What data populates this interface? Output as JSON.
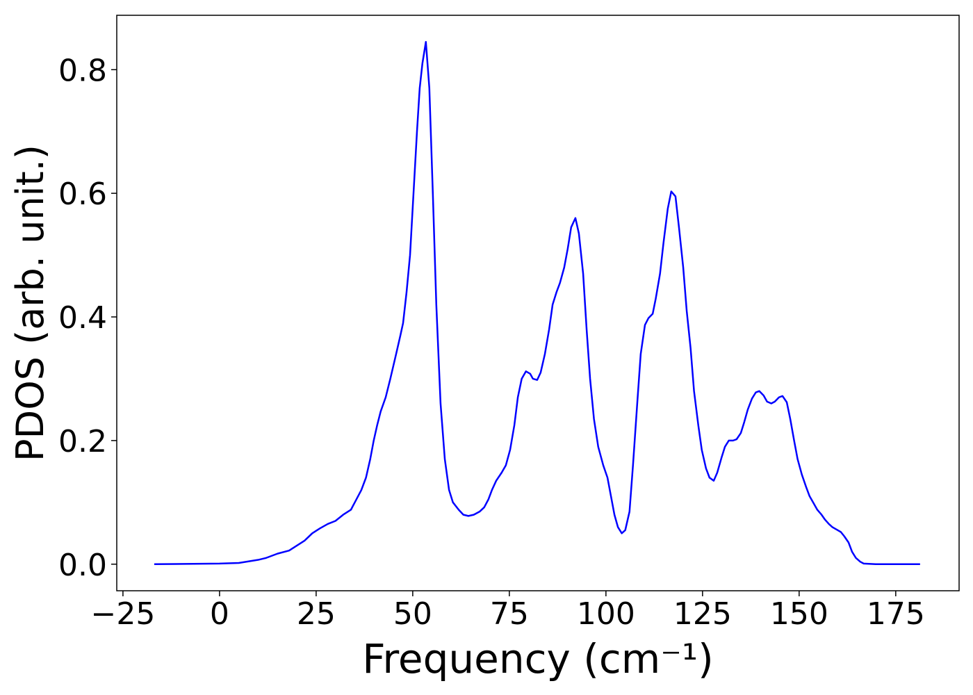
{
  "chart_data": {
    "type": "line",
    "xlabel": "Frequency (cm⁻¹)",
    "ylabel": "PDOS (arb. unit.)",
    "color": "#0000ff",
    "xlim": [
      -26.6,
      191.4
    ],
    "ylim": [
      -0.043,
      0.888
    ],
    "xticks": [
      {
        "value": -25,
        "label": "−25"
      },
      0,
      25,
      50,
      75,
      100,
      125,
      150,
      175
    ],
    "yticks": [
      {
        "value": 0,
        "label": "0.0"
      },
      0.2,
      0.4,
      0.6,
      0.8
    ],
    "grid": false,
    "x": [
      -16.9,
      0,
      5,
      10,
      12,
      15,
      18,
      20,
      22,
      24,
      26,
      28,
      30,
      32,
      34,
      36.7,
      37.9,
      39.0,
      39.9,
      40.8,
      41.7,
      43.0,
      44.2,
      45.7,
      46.8,
      47.5,
      48.4,
      49.3,
      50.2,
      51.1,
      51.8,
      52.5,
      53.4,
      54.3,
      55.2,
      56.1,
      57.2,
      58.3,
      59.4,
      60.4,
      61.9,
      63.1,
      64.4,
      65.8,
      67.3,
      68.5,
      69.6,
      70.5,
      71.6,
      73.0,
      74.1,
      75.2,
      76.3,
      77.2,
      78.2,
      79.3,
      80.4,
      81.1,
      82.2,
      83.1,
      84.2,
      85.3,
      86.2,
      87.2,
      88.1,
      89.2,
      90.1,
      91.0,
      92.1,
      93.0,
      94.1,
      95.0,
      95.9,
      96.9,
      98.0,
      99.3,
      100.4,
      101.3,
      102.2,
      103.1,
      104.1,
      105.0,
      106.1,
      107.0,
      108.1,
      109.0,
      110.1,
      111.0,
      112.1,
      112.9,
      114.0,
      114.9,
      116.0,
      116.9,
      118.0,
      118.9,
      120.0,
      120.9,
      121.9,
      122.8,
      123.9,
      124.8,
      125.9,
      126.8,
      127.9,
      128.8,
      129.9,
      130.8,
      131.8,
      132.9,
      133.8,
      134.9,
      135.8,
      136.7,
      137.8,
      138.8,
      139.7,
      140.8,
      141.7,
      142.8,
      143.7,
      144.8,
      145.7,
      146.8,
      147.7,
      148.7,
      149.6,
      150.7,
      151.8,
      152.7,
      153.8,
      154.7,
      155.8,
      156.7,
      157.7,
      158.6,
      159.7,
      160.8,
      161.7,
      162.8,
      163.7,
      164.7,
      165.8,
      166.7,
      169.8,
      181.3
    ],
    "values": [
      0,
      0.001,
      0.002,
      0.007,
      0.01,
      0.017,
      0.022,
      0.03,
      0.038,
      0.05,
      0.058,
      0.065,
      0.07,
      0.08,
      0.088,
      0.12,
      0.14,
      0.17,
      0.2,
      0.225,
      0.247,
      0.27,
      0.3,
      0.34,
      0.37,
      0.39,
      0.44,
      0.5,
      0.6,
      0.7,
      0.77,
      0.81,
      0.845,
      0.77,
      0.6,
      0.42,
      0.26,
      0.17,
      0.12,
      0.1,
      0.088,
      0.08,
      0.078,
      0.08,
      0.085,
      0.092,
      0.105,
      0.12,
      0.135,
      0.148,
      0.16,
      0.185,
      0.225,
      0.27,
      0.3,
      0.312,
      0.308,
      0.3,
      0.298,
      0.31,
      0.34,
      0.38,
      0.42,
      0.44,
      0.455,
      0.48,
      0.51,
      0.545,
      0.56,
      0.535,
      0.47,
      0.38,
      0.3,
      0.235,
      0.19,
      0.16,
      0.14,
      0.11,
      0.08,
      0.06,
      0.05,
      0.055,
      0.085,
      0.16,
      0.26,
      0.34,
      0.387,
      0.398,
      0.405,
      0.43,
      0.47,
      0.52,
      0.575,
      0.603,
      0.595,
      0.545,
      0.48,
      0.41,
      0.35,
      0.28,
      0.225,
      0.185,
      0.155,
      0.14,
      0.135,
      0.148,
      0.172,
      0.19,
      0.2,
      0.2,
      0.202,
      0.212,
      0.23,
      0.25,
      0.268,
      0.278,
      0.28,
      0.273,
      0.263,
      0.26,
      0.263,
      0.27,
      0.272,
      0.262,
      0.235,
      0.2,
      0.17,
      0.145,
      0.125,
      0.11,
      0.098,
      0.088,
      0.08,
      0.072,
      0.065,
      0.06,
      0.056,
      0.052,
      0.045,
      0.035,
      0.02,
      0.01,
      0.004,
      0.001,
      0,
      0
    ]
  }
}
